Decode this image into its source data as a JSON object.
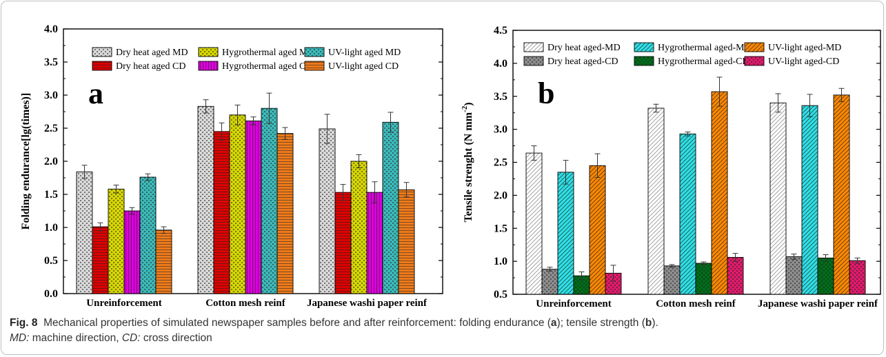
{
  "chart_data": [
    {
      "type": "bar",
      "panel_label": "a",
      "ylabel": "Folding endurance[lg(times)]",
      "ylim": [
        0.0,
        4.0
      ],
      "yticks": [
        "0.0",
        "0.5",
        "1.0",
        "1.5",
        "2.0",
        "2.5",
        "3.0",
        "3.5",
        "4.0"
      ],
      "categories": [
        "Unreinforcement",
        "Cotton mesh reinf",
        "Japanese washi paper reinf"
      ],
      "grid": false,
      "legend_position": "top-left",
      "series": [
        {
          "name": "Dry heat aged MD",
          "values": [
            1.84,
            2.83,
            2.49
          ],
          "errors": [
            0.1,
            0.1,
            0.22
          ],
          "color": "#d8d8d8",
          "pattern": "checker"
        },
        {
          "name": "Dry heat aged CD",
          "values": [
            1.01,
            2.45,
            1.53
          ],
          "errors": [
            0.06,
            0.13,
            0.12
          ],
          "color": "#dd0000",
          "pattern": "hlines"
        },
        {
          "name": "Hygrothermal aged MD",
          "values": [
            1.58,
            2.7,
            2.0
          ],
          "errors": [
            0.06,
            0.15,
            0.1
          ],
          "color": "#d6d600",
          "pattern": "checker"
        },
        {
          "name": "Hygrothermal aged CD",
          "values": [
            1.25,
            2.61,
            1.53
          ],
          "errors": [
            0.05,
            0.06,
            0.16
          ],
          "color": "#dd00dd",
          "pattern": "vlines"
        },
        {
          "name": "UV-light aged MD",
          "values": [
            1.76,
            2.8,
            2.59
          ],
          "errors": [
            0.05,
            0.23,
            0.15
          ],
          "color": "#3cb8b8",
          "pattern": "checker"
        },
        {
          "name": "UV-light aged CD",
          "values": [
            0.96,
            2.42,
            1.57
          ],
          "errors": [
            0.05,
            0.09,
            0.11
          ],
          "color": "#ee7a1a",
          "pattern": "hlines"
        }
      ]
    },
    {
      "type": "bar",
      "panel_label": "b",
      "ylabel": "Tensile strenght (N mm",
      "ylabel_sup": "-2",
      "ylabel_end": ")",
      "ylim": [
        0.5,
        4.5
      ],
      "yticks": [
        "0.5",
        "1.0",
        "1.5",
        "2.0",
        "2.5",
        "3.0",
        "3.5",
        "4.0",
        "4.5"
      ],
      "categories": [
        "Unreinforcement",
        "Cotton mesh reinf",
        "Japanese washi paper reinf"
      ],
      "grid": false,
      "legend_position": "top",
      "series": [
        {
          "name": "Dry heat aged-MD",
          "values": [
            2.64,
            3.32,
            3.4
          ],
          "errors": [
            0.11,
            0.06,
            0.14
          ],
          "color": "#ffffff",
          "pattern": "diag-light"
        },
        {
          "name": "Dry heat aged-CD",
          "values": [
            0.88,
            0.93,
            1.07
          ],
          "errors": [
            0.03,
            0.02,
            0.04
          ],
          "color": "#8c8c8c",
          "pattern": "checker"
        },
        {
          "name": "Hygrothermal aged-MD",
          "values": [
            2.35,
            2.93,
            3.36
          ],
          "errors": [
            0.18,
            0.03,
            0.17
          ],
          "color": "#2ee0e6",
          "pattern": "diag"
        },
        {
          "name": "Hygrothermal aged-CD",
          "values": [
            0.78,
            0.97,
            1.05
          ],
          "errors": [
            0.06,
            0.02,
            0.05
          ],
          "color": "#006b1a",
          "pattern": "checker"
        },
        {
          "name": "UV-light aged-MD",
          "values": [
            2.45,
            3.57,
            3.52
          ],
          "errors": [
            0.18,
            0.22,
            0.1
          ],
          "color": "#ff8800",
          "pattern": "diag"
        },
        {
          "name": "UV-light aged-CD",
          "values": [
            0.82,
            1.06,
            1.01
          ],
          "errors": [
            0.12,
            0.06,
            0.04
          ],
          "color": "#dd1a6a",
          "pattern": "checker"
        }
      ]
    }
  ],
  "caption": {
    "fig_label": "Fig. 8",
    "text_1": "Mechanical properties of simulated newspaper samples before and after reinforcement: folding endurance (",
    "bold_a": "a",
    "text_2": "); tensile strength (",
    "bold_b": "b",
    "text_3": ").",
    "md_abbr": "MD:",
    "md_text": " machine direction, ",
    "cd_abbr": "CD:",
    "cd_text": " cross direction"
  }
}
